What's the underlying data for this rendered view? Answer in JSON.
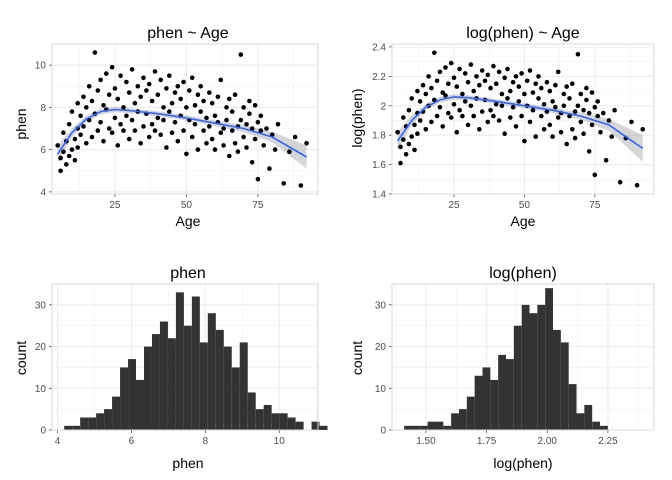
{
  "chart_data": [
    {
      "type": "scatter",
      "title": "phen ~ Age",
      "xlabel": "Age",
      "ylabel": "phen",
      "xlim": [
        3,
        96
      ],
      "ylim": [
        3.9,
        11.0
      ],
      "xticks": [
        25,
        50,
        75
      ],
      "yticks": [
        4,
        6,
        8,
        10
      ],
      "grid": true,
      "smooth": {
        "x": [
          5,
          10,
          15,
          20,
          25,
          30,
          40,
          50,
          60,
          70,
          80,
          92
        ],
        "y": [
          5.8,
          6.8,
          7.45,
          7.8,
          7.9,
          7.85,
          7.7,
          7.5,
          7.25,
          7.0,
          6.6,
          5.65
        ],
        "band_half": [
          0.4,
          0.22,
          0.15,
          0.14,
          0.13,
          0.12,
          0.12,
          0.12,
          0.13,
          0.16,
          0.25,
          0.55
        ]
      },
      "x": [
        5,
        6,
        6,
        7,
        7,
        8,
        8,
        9,
        9,
        10,
        10,
        11,
        11,
        12,
        12,
        12,
        13,
        13,
        14,
        14,
        15,
        15,
        16,
        16,
        17,
        17,
        18,
        18,
        19,
        19,
        20,
        20,
        21,
        21,
        22,
        22,
        23,
        23,
        24,
        24,
        25,
        25,
        26,
        26,
        27,
        27,
        28,
        28,
        29,
        29,
        30,
        30,
        31,
        31,
        32,
        32,
        33,
        33,
        34,
        34,
        35,
        35,
        36,
        36,
        37,
        37,
        38,
        38,
        39,
        39,
        40,
        40,
        41,
        41,
        42,
        42,
        43,
        43,
        44,
        44,
        45,
        45,
        46,
        46,
        47,
        47,
        48,
        48,
        49,
        49,
        50,
        50,
        51,
        51,
        52,
        52,
        53,
        53,
        54,
        54,
        55,
        55,
        56,
        56,
        57,
        57,
        58,
        58,
        59,
        59,
        60,
        60,
        61,
        61,
        62,
        62,
        63,
        63,
        64,
        64,
        65,
        65,
        66,
        66,
        67,
        67,
        68,
        68,
        69,
        69,
        70,
        70,
        71,
        71,
        72,
        72,
        73,
        73,
        74,
        74,
        75,
        75,
        76,
        76,
        77,
        78,
        79,
        80,
        81,
        82,
        84,
        86,
        88,
        90,
        92
      ],
      "y": [
        6.2,
        5.0,
        5.6,
        5.9,
        6.8,
        5.3,
        6.4,
        5.7,
        7.2,
        6.0,
        7.8,
        6.5,
        5.5,
        7.0,
        8.2,
        6.1,
        7.6,
        6.7,
        8.5,
        7.1,
        6.3,
        8.0,
        7.4,
        9.0,
        6.6,
        8.3,
        10.6,
        7.7,
        6.9,
        8.8,
        7.3,
        9.3,
        8.1,
        6.4,
        7.9,
        9.6,
        7.0,
        8.6,
        6.8,
        9.9,
        7.5,
        8.9,
        6.2,
        8.4,
        9.5,
        7.2,
        8.0,
        6.9,
        9.2,
        7.6,
        8.7,
        6.5,
        9.8,
        7.4,
        8.2,
        6.9,
        9.0,
        7.8,
        8.5,
        6.3,
        9.4,
        7.1,
        8.8,
        7.7,
        6.6,
        9.1,
        8.3,
        7.2,
        9.7,
        6.9,
        8.6,
        7.5,
        9.3,
        6.7,
        8.0,
        7.4,
        8.9,
        6.1,
        9.5,
        7.8,
        8.2,
        6.8,
        8.7,
        7.3,
        9.0,
        6.4,
        8.4,
        7.6,
        9.2,
        6.9,
        8.0,
        5.8,
        8.8,
        7.4,
        9.4,
        6.6,
        8.1,
        7.2,
        8.6,
        6.0,
        7.8,
        9.0,
        6.9,
        8.3,
        7.5,
        6.3,
        8.7,
        7.1,
        6.5,
        8.2,
        7.6,
        6.0,
        8.5,
        7.3,
        6.8,
        9.3,
        7.0,
        6.2,
        8.0,
        7.4,
        5.7,
        8.4,
        6.9,
        7.8,
        6.3,
        8.6,
        7.1,
        5.9,
        10.5,
        7.4,
        6.6,
        8.0,
        7.2,
        6.1,
        8.3,
        7.7,
        5.4,
        7.0,
        6.5,
        8.1,
        7.3,
        4.6,
        6.9,
        7.6,
        6.2,
        7.0,
        5.1,
        6.7,
        6.0,
        7.2,
        4.4,
        5.9,
        6.6,
        4.3,
        6.3
      ],
      "dot_color": "#000000",
      "line_color": "#3366ff",
      "band_color": "#999999"
    },
    {
      "type": "scatter",
      "title": "log(phen) ~ Age",
      "xlabel": "Age",
      "ylabel": "log(phen)",
      "xlim": [
        3,
        96
      ],
      "ylim": [
        1.4,
        2.42
      ],
      "xticks": [
        25,
        50,
        75
      ],
      "yticks": [
        1.4,
        1.6,
        1.8,
        2.0,
        2.2,
        2.4
      ],
      "grid": true,
      "smooth": {
        "x": [
          5,
          10,
          15,
          20,
          25,
          30,
          40,
          50,
          60,
          70,
          80,
          92
        ],
        "y": [
          1.76,
          1.9,
          1.99,
          2.04,
          2.06,
          2.055,
          2.03,
          2.0,
          1.97,
          1.93,
          1.87,
          1.71
        ],
        "band_half": [
          0.06,
          0.035,
          0.022,
          0.02,
          0.018,
          0.017,
          0.017,
          0.017,
          0.019,
          0.024,
          0.04,
          0.09
        ]
      },
      "x": [
        5,
        6,
        6,
        7,
        7,
        8,
        8,
        9,
        9,
        10,
        10,
        11,
        11,
        12,
        12,
        12,
        13,
        13,
        14,
        14,
        15,
        15,
        16,
        16,
        17,
        17,
        18,
        18,
        19,
        19,
        20,
        20,
        21,
        21,
        22,
        22,
        23,
        23,
        24,
        24,
        25,
        25,
        26,
        26,
        27,
        27,
        28,
        28,
        29,
        29,
        30,
        30,
        31,
        31,
        32,
        32,
        33,
        33,
        34,
        34,
        35,
        35,
        36,
        36,
        37,
        37,
        38,
        38,
        39,
        39,
        40,
        40,
        41,
        41,
        42,
        42,
        43,
        43,
        44,
        44,
        45,
        45,
        46,
        46,
        47,
        47,
        48,
        48,
        49,
        49,
        50,
        50,
        51,
        51,
        52,
        52,
        53,
        53,
        54,
        54,
        55,
        55,
        56,
        56,
        57,
        57,
        58,
        58,
        59,
        59,
        60,
        60,
        61,
        61,
        62,
        62,
        63,
        63,
        64,
        64,
        65,
        65,
        66,
        66,
        67,
        67,
        68,
        68,
        69,
        69,
        70,
        70,
        71,
        71,
        72,
        72,
        73,
        73,
        74,
        74,
        75,
        75,
        76,
        76,
        77,
        78,
        79,
        80,
        81,
        82,
        84,
        86,
        88,
        90,
        92
      ],
      "y": [
        1.82,
        1.61,
        1.72,
        1.77,
        1.92,
        1.67,
        1.86,
        1.74,
        1.97,
        1.79,
        2.05,
        1.87,
        1.7,
        1.95,
        2.1,
        1.81,
        2.03,
        1.9,
        2.14,
        1.96,
        1.84,
        2.08,
        2.0,
        2.2,
        1.89,
        2.12,
        2.36,
        2.04,
        1.93,
        2.17,
        1.99,
        2.23,
        2.09,
        1.86,
        2.07,
        2.26,
        1.95,
        2.15,
        1.92,
        2.29,
        2.01,
        2.19,
        1.82,
        2.13,
        2.25,
        1.97,
        2.08,
        1.93,
        2.22,
        2.03,
        2.16,
        1.87,
        2.28,
        2.0,
        2.1,
        1.93,
        2.2,
        2.05,
        2.14,
        1.84,
        2.24,
        1.96,
        2.17,
        2.04,
        1.89,
        2.21,
        2.12,
        1.97,
        2.27,
        1.93,
        2.15,
        2.01,
        2.23,
        1.9,
        2.08,
        2.0,
        2.19,
        1.81,
        2.25,
        2.05,
        2.1,
        1.92,
        2.16,
        1.99,
        2.2,
        1.86,
        2.13,
        2.03,
        2.22,
        1.93,
        2.08,
        1.76,
        2.17,
        2.0,
        2.24,
        1.89,
        2.09,
        1.97,
        2.15,
        1.79,
        2.05,
        2.2,
        1.93,
        2.12,
        2.01,
        1.84,
        2.16,
        1.96,
        1.87,
        2.1,
        2.03,
        1.79,
        2.14,
        1.99,
        1.92,
        2.23,
        1.95,
        1.82,
        2.08,
        2.0,
        1.74,
        2.13,
        1.93,
        2.05,
        1.84,
        2.15,
        1.96,
        1.78,
        2.35,
        2.0,
        1.89,
        2.08,
        1.97,
        1.81,
        2.12,
        2.04,
        1.69,
        1.95,
        1.87,
        2.09,
        1.99,
        1.53,
        1.93,
        2.03,
        1.82,
        1.95,
        1.63,
        1.9,
        1.79,
        1.97,
        1.48,
        1.78,
        1.89,
        1.46,
        1.84
      ],
      "dot_color": "#000000",
      "line_color": "#3366ff",
      "band_color": "#999999"
    },
    {
      "type": "bar",
      "title": "phen",
      "xlabel": "phen",
      "ylabel": "count",
      "xlim": [
        3.85,
        11.05
      ],
      "ylim": [
        0,
        35
      ],
      "xticks": [
        4,
        6,
        8,
        10
      ],
      "yticks": [
        0,
        10,
        20,
        30
      ],
      "grid": true,
      "bin_start": 4.18,
      "bin_width": 0.216,
      "counts": [
        1,
        1,
        3,
        3,
        4,
        5,
        8,
        15,
        17,
        12,
        20,
        23,
        26,
        22,
        33,
        25,
        32,
        21,
        28,
        24,
        20,
        15,
        21,
        9,
        5,
        6,
        4,
        4,
        3,
        2,
        0,
        2,
        1
      ],
      "bar_color": "#333333"
    },
    {
      "type": "bar",
      "title": "log(phen)",
      "xlabel": "log(phen)",
      "ylabel": "count",
      "xlim": [
        1.36,
        2.44
      ],
      "ylim": [
        0,
        35
      ],
      "xticks": [
        1.5,
        1.75,
        2.0,
        2.25
      ],
      "ytick_labels": [
        "0",
        "10",
        "20",
        "30"
      ],
      "xtick_labels": [
        "1.50",
        "1.75",
        "2.00",
        "2.25"
      ],
      "yticks": [
        0,
        10,
        20,
        30
      ],
      "grid": true,
      "bin_start": 1.41,
      "bin_width": 0.0323,
      "counts": [
        1,
        1,
        1,
        2,
        2,
        1,
        4,
        5,
        8,
        13,
        15,
        12,
        18,
        17,
        25,
        30,
        28,
        30,
        34,
        24,
        21,
        11,
        4,
        6,
        2,
        1
      ],
      "bar_color": "#333333"
    }
  ]
}
